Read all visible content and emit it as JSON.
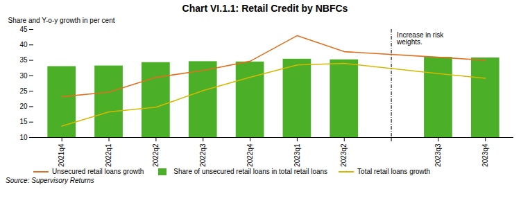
{
  "chart_data": {
    "type": "bar",
    "title": "Chart VI.1.1: Retail Credit by NBFCs",
    "ylabel": "Share and Y-o-y growth in per cent",
    "source": "Source: Supervisory Returns",
    "annotation": "Increase in risk\nweights.",
    "categories": [
      "2021q4",
      "2022q1",
      "2022q2",
      "2022q3",
      "2022q4",
      "2023q1",
      "2023q2",
      null,
      "2023q3",
      "2023q4"
    ],
    "series": [
      {
        "name": "Unsecured retail loans growth",
        "type": "line",
        "color": "#e07020",
        "values": [
          23.2,
          24.7,
          29.5,
          31.7,
          34.7,
          43.0,
          37.8,
          null,
          36.0,
          35.0
        ]
      },
      {
        "name": "Share of unsecured retail loans in total retail loans",
        "type": "bar",
        "color": "#4caf28",
        "values": [
          33.0,
          33.2,
          34.3,
          34.6,
          34.5,
          35.4,
          35.2,
          null,
          36.0,
          35.8
        ]
      },
      {
        "name": "Total retail loans growth",
        "type": "line",
        "color": "#d4b800",
        "values": [
          13.7,
          18.3,
          19.8,
          25.2,
          29.5,
          33.5,
          34.0,
          null,
          30.7,
          29.2
        ]
      }
    ],
    "ylim": [
      10,
      45
    ],
    "yticks": [
      10,
      15,
      20,
      25,
      30,
      35,
      40,
      45
    ]
  }
}
